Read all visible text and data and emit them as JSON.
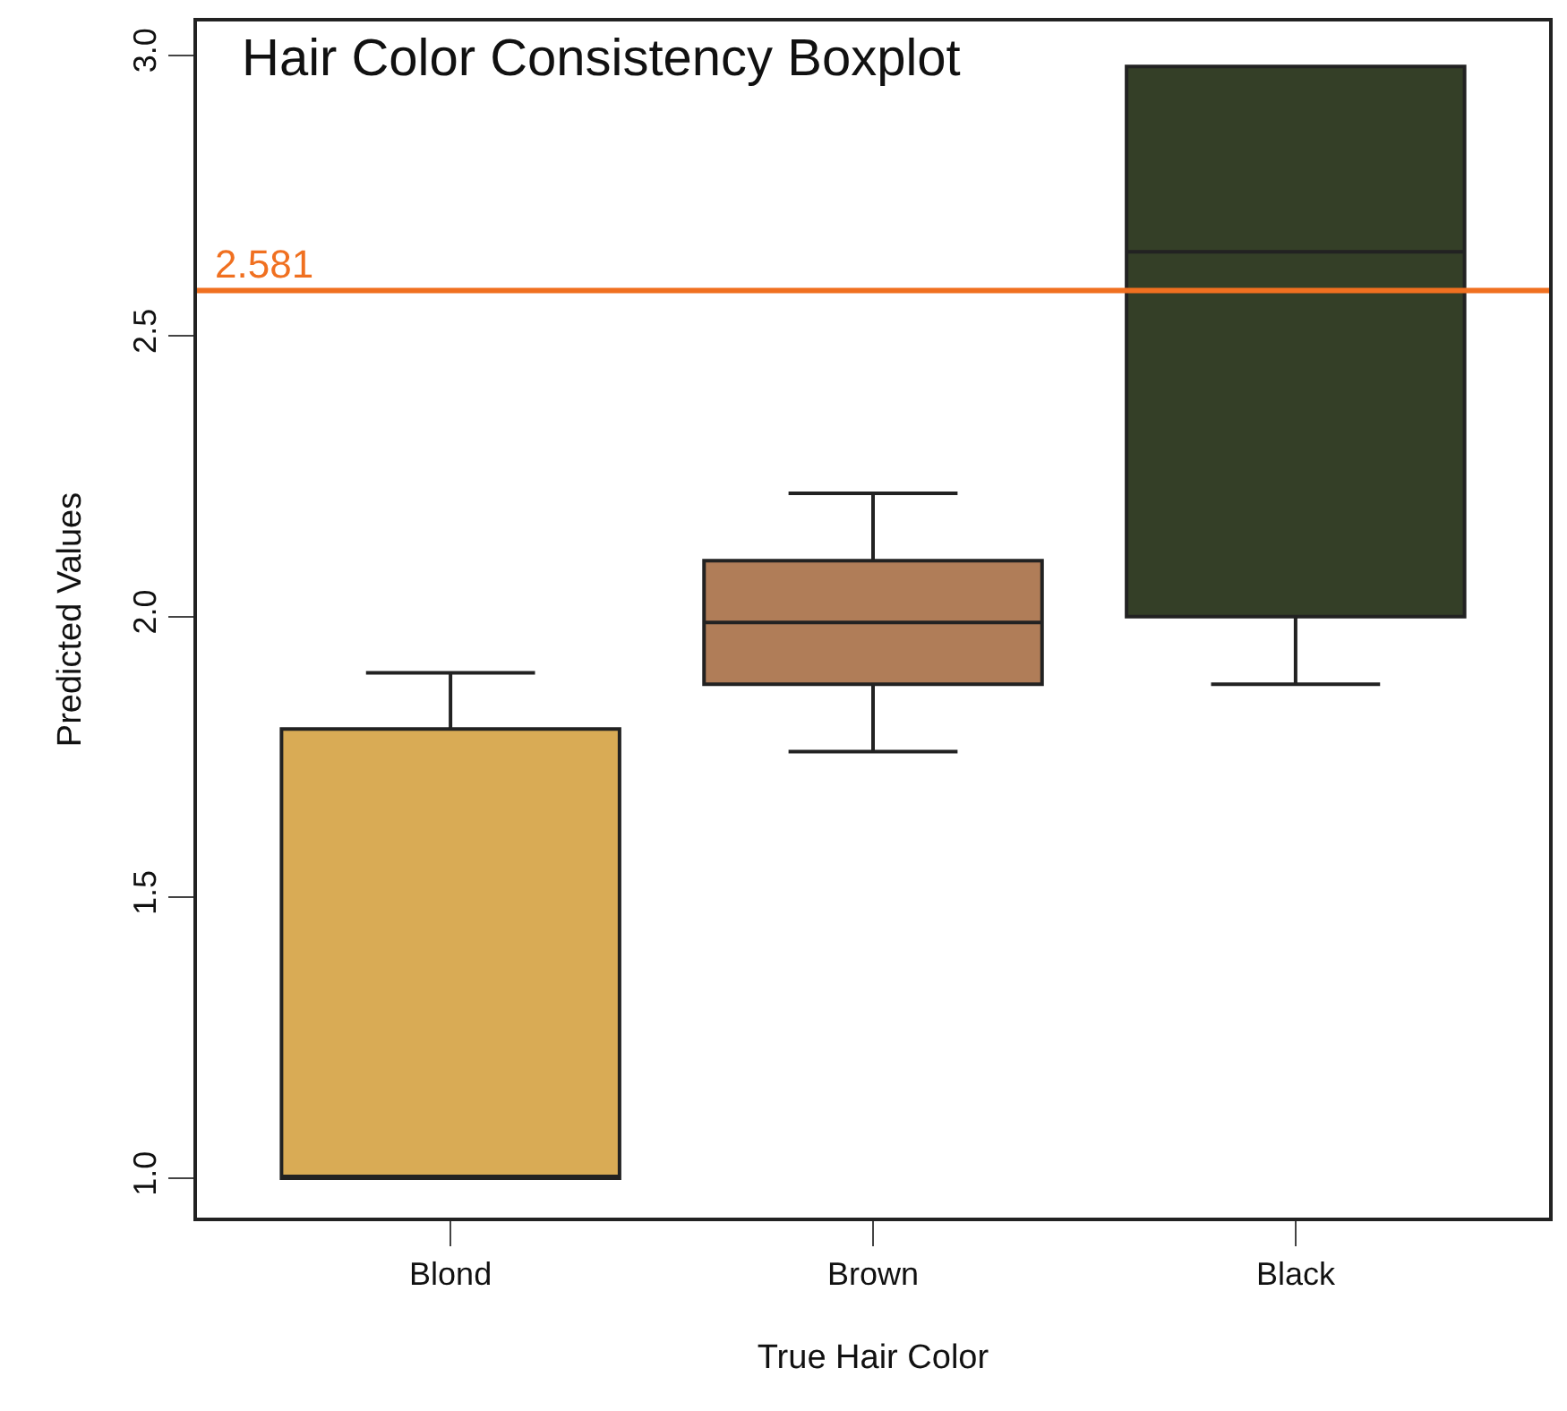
{
  "chart_data": {
    "type": "box",
    "title": "Hair Color Consistency Boxplot",
    "xlabel": "True Hair Color",
    "ylabel": "Predicted Values",
    "categories": [
      "Blond",
      "Brown",
      "Black"
    ],
    "colors": [
      "#d9ab55",
      "#b07d58",
      "#343f27"
    ],
    "boxes": [
      {
        "low": 1.0,
        "q1": 1.0,
        "median": 1.0,
        "q3": 1.8,
        "high": 1.9
      },
      {
        "low": 1.76,
        "q1": 1.88,
        "median": 1.99,
        "q3": 2.1,
        "high": 2.22
      },
      {
        "low": 1.88,
        "q1": 2.0,
        "median": 2.65,
        "q3": 2.98,
        "high": 2.98
      }
    ],
    "ylim": [
      0.93,
      3.06
    ],
    "yticks": [
      {
        "value": 1,
        "label": "1.0"
      },
      1.5,
      {
        "value": 2,
        "label": "2.0"
      },
      2.5,
      {
        "value": 3,
        "label": "3.0"
      }
    ],
    "ref_lines": [
      {
        "axis": "y",
        "value": 2.581,
        "label": "2.581",
        "color": "#f07020"
      }
    ],
    "grid": false
  }
}
